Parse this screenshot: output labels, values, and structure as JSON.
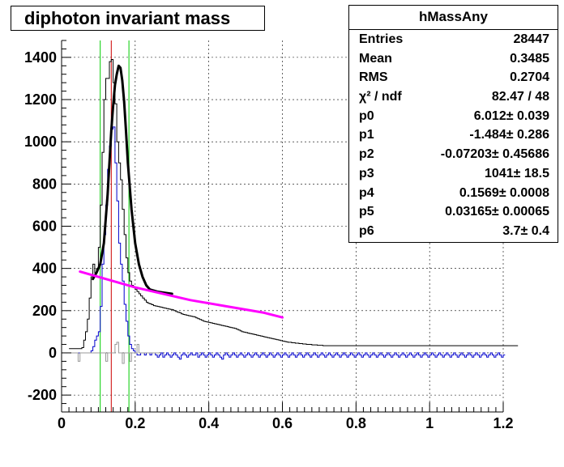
{
  "title": "diphoton invariant mass",
  "stats": {
    "name": "hMassAny",
    "rows": [
      {
        "key": "Entries",
        "value": "28447"
      },
      {
        "key": "Mean",
        "value": "0.3485"
      },
      {
        "key": "RMS",
        "value": "0.2704"
      },
      {
        "key": "χ² / ndf",
        "value": "82.47 / 48"
      },
      {
        "key": "p0",
        "value": "6.012± 0.039"
      },
      {
        "key": "p1",
        "value": "-1.484± 0.286"
      },
      {
        "key": "p2",
        "value": "-0.07203± 0.45686"
      },
      {
        "key": "p3",
        "value": "1041± 18.5"
      },
      {
        "key": "p4",
        "value": "0.1569± 0.0008"
      },
      {
        "key": "p5",
        "value": "0.03165± 0.00065"
      },
      {
        "key": "p6",
        "value": "3.7± 0.4"
      }
    ]
  },
  "chart_data": {
    "type": "histogram",
    "xlim": [
      0,
      1.2
    ],
    "ylim": [
      -280,
      1480
    ],
    "grid": true,
    "x_ticks": [
      0,
      0.2,
      0.4,
      0.6,
      0.8,
      1,
      1.2
    ],
    "x_tick_labels": [
      "0",
      "0.2",
      "0.4",
      "0.6",
      "0.8",
      "1",
      "1.2"
    ],
    "y_ticks": [
      -200,
      0,
      200,
      400,
      600,
      800,
      1000,
      1200,
      1400
    ],
    "y_tick_labels": [
      "-200",
      "0",
      "200",
      "400",
      "600",
      "800",
      "1000",
      "1200",
      "1400"
    ],
    "vertical_lines": [
      {
        "x": 0.105,
        "color": "#00cc00"
      },
      {
        "x": 0.135,
        "color": "#cc0000"
      },
      {
        "x": 0.183,
        "color": "#00cc00"
      }
    ],
    "series": [
      {
        "color": "#000000",
        "style": "hist",
        "bin_start": 0.02,
        "bin_width": 0.005,
        "values": [
          20,
          20,
          20,
          20,
          20,
          20,
          20,
          25,
          60,
          100,
          160,
          260,
          360,
          420,
          380,
          400,
          500,
          700,
          950,
          1200,
          1300,
          1300,
          1380,
          1390,
          1280,
          1180,
          1000,
          900,
          820,
          680,
          560,
          450,
          380,
          340,
          320,
          310,
          300,
          290,
          280,
          270,
          260,
          250,
          240,
          235,
          232,
          228,
          224,
          222,
          220,
          218,
          216,
          214,
          212,
          210,
          208,
          206,
          204,
          200,
          196,
          192,
          190,
          185,
          182,
          180,
          178,
          176,
          174,
          172,
          170,
          166,
          162,
          158,
          154,
          150,
          148,
          146,
          144,
          142,
          140,
          138,
          136,
          134,
          132,
          130,
          128,
          126,
          124,
          122,
          120,
          118,
          116,
          112,
          108,
          104,
          100,
          98,
          96,
          94,
          92,
          90,
          88,
          86,
          84,
          82,
          80,
          78,
          76,
          74,
          72,
          70,
          68,
          66,
          64,
          62,
          60,
          58,
          56,
          54,
          52,
          50,
          50,
          48,
          48,
          46,
          46,
          44,
          44,
          42,
          42,
          40,
          40,
          40,
          38,
          38,
          38,
          36,
          36,
          36,
          34,
          34,
          34,
          34,
          34,
          34,
          34,
          34,
          34,
          34,
          34,
          34,
          34,
          34,
          34,
          34,
          34,
          34,
          34,
          34,
          34,
          34,
          34,
          34,
          34,
          34,
          34,
          34,
          34,
          34,
          34,
          34,
          34,
          34,
          34,
          34,
          34,
          34,
          34,
          34,
          34,
          34,
          34,
          34,
          34,
          34,
          34,
          34,
          34,
          34,
          34,
          34,
          34,
          34,
          34,
          34,
          34,
          34,
          34,
          34,
          34,
          34,
          34,
          34,
          34,
          34,
          34,
          34,
          34,
          34,
          34,
          34,
          34,
          34,
          34,
          34,
          34,
          34,
          34,
          34,
          34,
          34,
          34,
          34,
          34,
          34,
          34,
          34,
          34,
          34,
          34,
          34,
          34,
          34,
          34,
          34,
          34,
          34,
          34,
          34,
          34,
          34,
          34,
          34,
          34,
          34
        ]
      },
      {
        "color": "#0000cc",
        "style": "hist",
        "bin_start": 0.02,
        "bin_width": 0.005,
        "values": [
          0,
          0,
          0,
          0,
          0,
          0,
          0,
          0,
          0,
          0,
          0,
          0,
          10,
          30,
          60,
          80,
          100,
          220,
          420,
          560,
          700,
          870,
          980,
          1060,
          1070,
          900,
          720,
          520,
          420,
          340,
          230,
          150,
          80,
          40,
          20,
          10,
          0,
          -10,
          -10,
          0,
          0,
          -10,
          0,
          0,
          -10,
          0,
          0,
          -10,
          -20,
          -10,
          0,
          -20,
          -10,
          0,
          -10,
          -20,
          -10,
          0,
          -10,
          -20,
          -30,
          -10,
          0,
          -10,
          -20,
          -10,
          0,
          -10,
          -10,
          0,
          -20,
          -10,
          0,
          -10,
          -20,
          -10,
          0,
          -10,
          -20,
          -10,
          0,
          -10,
          -20,
          -30,
          -10,
          0,
          -10,
          -20,
          -10,
          0,
          -10,
          -20,
          -10,
          0,
          -10,
          -20,
          -10,
          0,
          -10,
          -20,
          -10,
          0,
          -10,
          -20,
          -10,
          0,
          -10,
          -20,
          -10,
          0,
          -10,
          -20,
          -10,
          0,
          -10,
          -20,
          -10,
          0,
          -10,
          -20,
          -10,
          0,
          -10,
          -20,
          -10,
          0,
          -10,
          -20,
          -10,
          0,
          -10,
          -20,
          -10,
          0,
          -10,
          -20,
          -10,
          0,
          -10,
          -20,
          -10,
          0,
          -10,
          -20,
          -10,
          0,
          -10,
          -20,
          -10,
          0,
          -10,
          -20,
          -10,
          0,
          -10,
          -20,
          -10,
          0,
          -10,
          -20,
          -10,
          0,
          -10,
          -20,
          -10,
          0,
          -10,
          -20,
          -10,
          0,
          -10,
          -20,
          -10,
          0,
          -10,
          -20,
          -10,
          0,
          -10,
          -20,
          -10,
          0,
          -10,
          -20,
          -10,
          0,
          -10,
          -20,
          -10,
          0,
          -10,
          -20,
          -10,
          0,
          -10,
          -20,
          -10,
          0,
          -10,
          -20,
          -10,
          0,
          -10,
          -20,
          -10,
          0,
          -10,
          -20,
          -10,
          0,
          -10,
          -20,
          -10,
          0,
          -10,
          -20,
          -10,
          0,
          -10,
          -20,
          -10,
          0,
          -10,
          -20,
          -10,
          0,
          -10,
          -20,
          -10,
          0,
          -10,
          -20,
          -10,
          0,
          -10,
          -20,
          -10
        ]
      },
      {
        "color": "#999999",
        "style": "hist",
        "bin_start": 0.02,
        "bin_width": 0.005,
        "values": [
          0,
          0,
          0,
          0,
          0,
          -40,
          0,
          0,
          0,
          0,
          0,
          0,
          0,
          0,
          0,
          0,
          0,
          0,
          0,
          0,
          -40,
          0,
          0,
          0,
          0,
          40,
          50,
          0,
          0,
          -50,
          0,
          0,
          0,
          -40,
          0,
          0,
          0,
          40,
          0,
          0,
          0,
          0,
          0,
          0,
          0,
          0,
          0,
          0,
          0
        ]
      },
      {
        "color": "#000000",
        "style": "fit",
        "x": [
          0.085,
          0.095,
          0.105,
          0.115,
          0.125,
          0.135,
          0.14,
          0.145,
          0.15,
          0.155,
          0.16,
          0.165,
          0.17,
          0.175,
          0.18,
          0.19,
          0.2,
          0.21,
          0.22,
          0.23,
          0.24,
          0.26,
          0.28,
          0.3
        ],
        "y": [
          350,
          380,
          420,
          520,
          750,
          1050,
          1170,
          1270,
          1320,
          1360,
          1350,
          1290,
          1190,
          1050,
          900,
          680,
          520,
          420,
          360,
          320,
          300,
          290,
          285,
          280
        ]
      },
      {
        "color": "#ff00ff",
        "style": "fit",
        "x": [
          0.05,
          0.1,
          0.15,
          0.2,
          0.25,
          0.3,
          0.35,
          0.4,
          0.45,
          0.5,
          0.55,
          0.6
        ],
        "y": [
          385,
          360,
          335,
          310,
          290,
          270,
          250,
          235,
          220,
          205,
          190,
          168
        ]
      }
    ]
  }
}
